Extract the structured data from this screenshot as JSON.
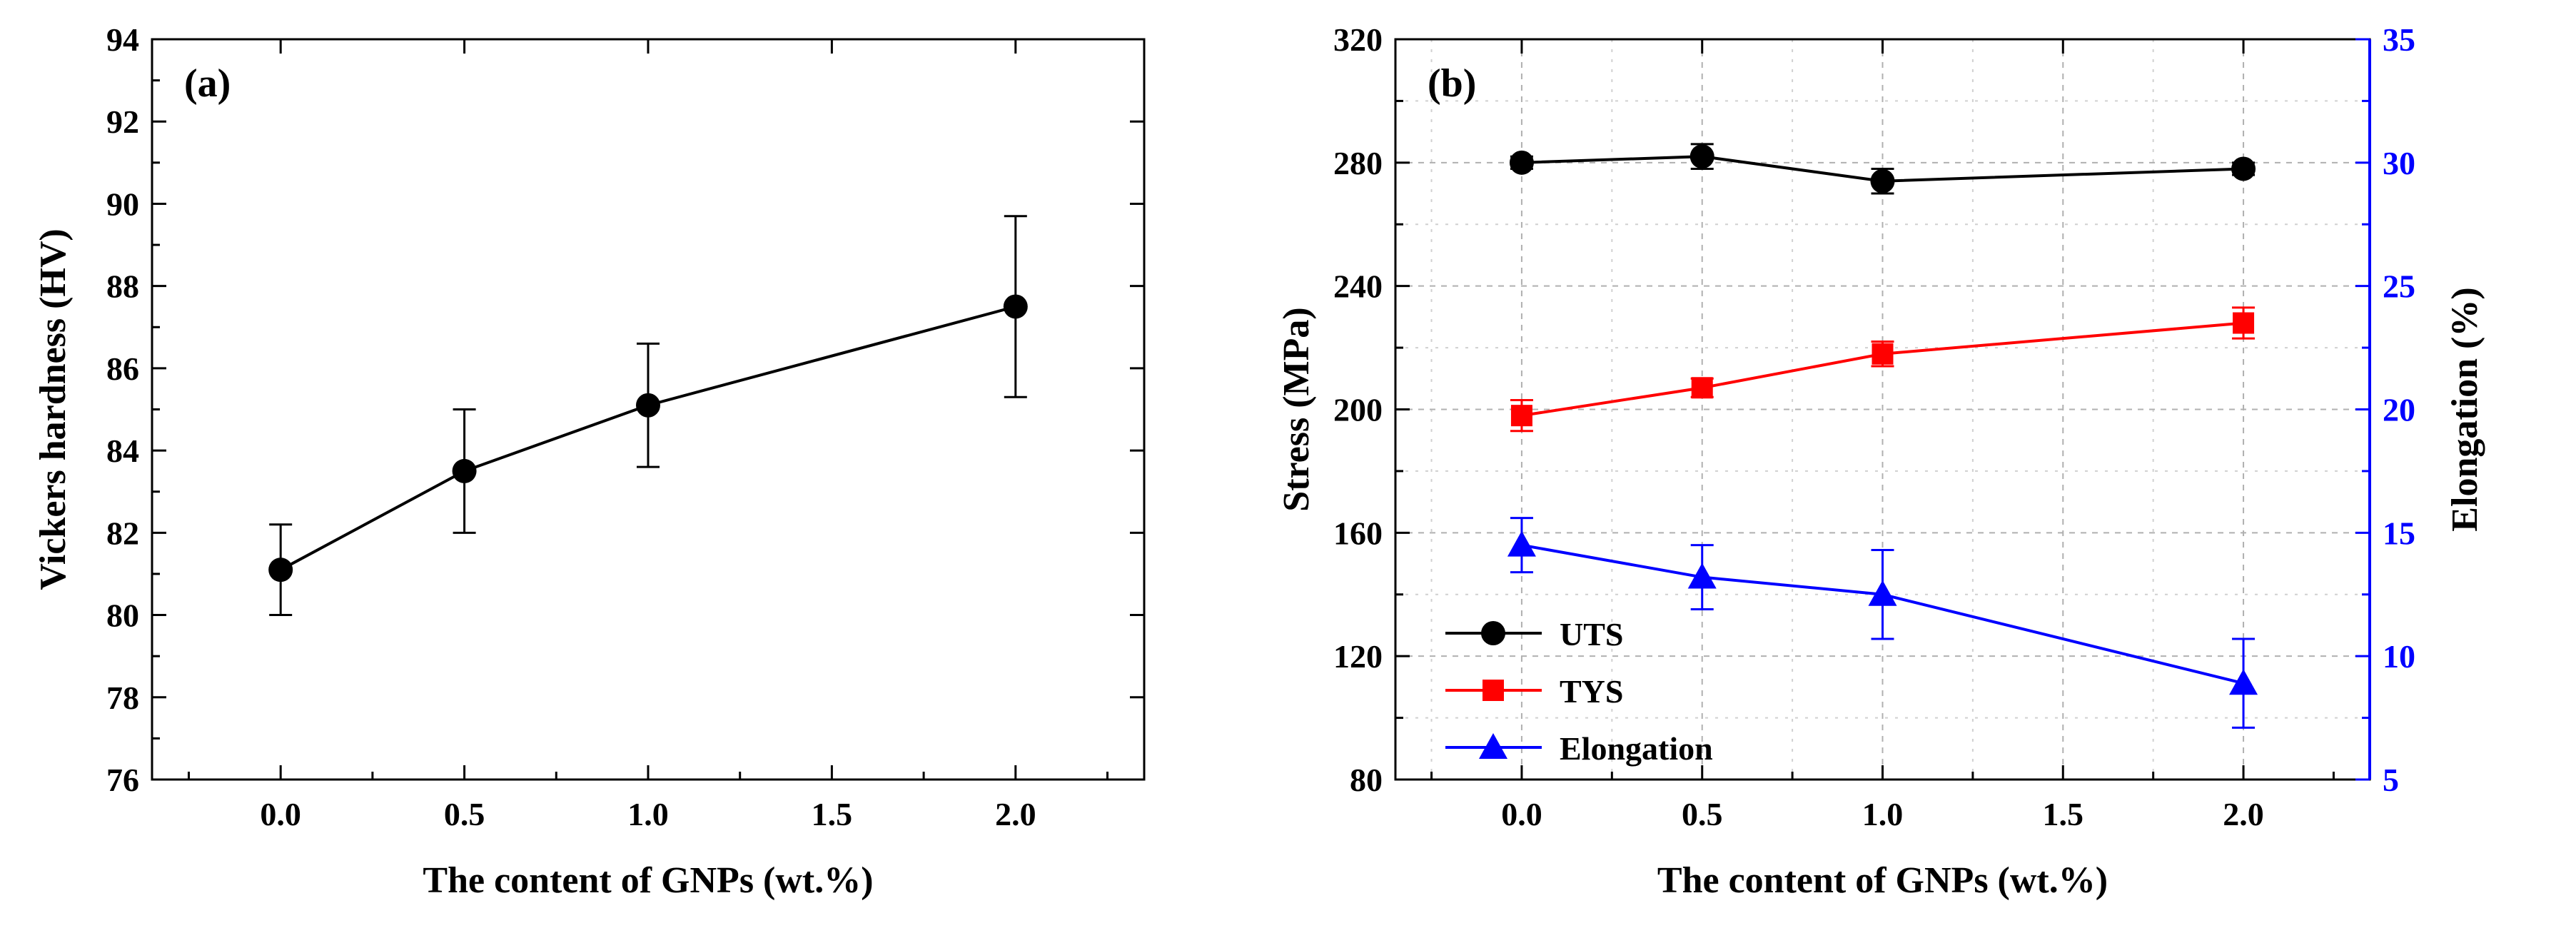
{
  "chart_data": [
    {
      "type": "line",
      "panel_label": "(a)",
      "title": "",
      "xlabel": "The content of GNPs (wt.%)",
      "ylabel": "Vickers hardness (HV)",
      "xlim": [
        -0.35,
        2.35
      ],
      "ylim": [
        76,
        94
      ],
      "x_ticks": [
        0.0,
        0.5,
        1.0,
        1.5,
        2.0
      ],
      "x_tick_labels": [
        "0.0",
        "0.5",
        "1.0",
        "1.5",
        "2.0"
      ],
      "y_ticks": [
        76,
        78,
        80,
        82,
        84,
        86,
        88,
        90,
        92,
        94
      ],
      "y_tick_labels": [
        "76",
        "78",
        "80",
        "82",
        "84",
        "86",
        "88",
        "90",
        "92",
        "94"
      ],
      "grid": false,
      "series": [
        {
          "name": "Vickers hardness",
          "color": "#000000",
          "marker": "circle",
          "x": [
            0.0,
            0.5,
            1.0,
            2.0
          ],
          "values": [
            81.1,
            83.5,
            85.1,
            87.5
          ],
          "error": [
            1.1,
            1.5,
            1.5,
            2.2
          ]
        }
      ]
    },
    {
      "type": "line",
      "panel_label": "(b)",
      "title": "",
      "xlabel": "The content of GNPs (wt.%)",
      "ylabel": "Stress (MPa)",
      "y2label": "Elongation (%)",
      "xlim": [
        -0.35,
        2.35
      ],
      "ylim": [
        80,
        320
      ],
      "y2lim": [
        5,
        35
      ],
      "x_ticks": [
        0.0,
        0.5,
        1.0,
        1.5,
        2.0
      ],
      "x_tick_labels": [
        "0.0",
        "0.5",
        "1.0",
        "1.5",
        "2.0"
      ],
      "y_ticks": [
        80,
        120,
        160,
        200,
        240,
        280,
        320
      ],
      "y_tick_labels": [
        "80",
        "120",
        "160",
        "200",
        "240",
        "280",
        "320"
      ],
      "y2_ticks": [
        5,
        10,
        15,
        20,
        25,
        30,
        35
      ],
      "y2_tick_labels": [
        "5",
        "10",
        "15",
        "20",
        "25",
        "30",
        "35"
      ],
      "y2_color": "#0000ff",
      "grid": true,
      "legend_position": "bottom-left",
      "series": [
        {
          "name": "UTS",
          "axis": "left",
          "color": "#000000",
          "marker": "circle",
          "x": [
            0.0,
            0.5,
            1.0,
            2.0
          ],
          "values": [
            280,
            282,
            274,
            278
          ],
          "error": [
            2,
            4,
            4,
            2
          ]
        },
        {
          "name": "TYS",
          "axis": "left",
          "color": "#ff0000",
          "marker": "square",
          "x": [
            0.0,
            0.5,
            1.0,
            2.0
          ],
          "values": [
            198,
            207,
            218,
            228
          ],
          "error": [
            5,
            3,
            4,
            5
          ]
        },
        {
          "name": "Elongation",
          "axis": "right",
          "color": "#0000ff",
          "marker": "triangle",
          "x": [
            0.0,
            0.5,
            1.0,
            2.0
          ],
          "values": [
            14.5,
            13.2,
            12.5,
            8.9
          ],
          "error": [
            1.1,
            1.3,
            1.8,
            1.8
          ]
        }
      ]
    }
  ]
}
